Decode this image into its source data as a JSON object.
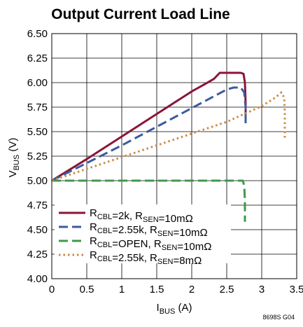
{
  "chart_data": {
    "type": "line",
    "title": "Output Current Load Line",
    "xlabel": {
      "main": "I",
      "sub": "BUS",
      "rest": " (A)"
    },
    "ylabel": {
      "main": "V",
      "sub": "BUS",
      "rest": " (V)"
    },
    "xlim": [
      0,
      3.5
    ],
    "ylim": [
      4.0,
      6.5
    ],
    "x_ticks": [
      0,
      0.5,
      1,
      1.5,
      2,
      2.5,
      3,
      3.5
    ],
    "x_tick_labels": [
      "0",
      "0.5",
      "1",
      "1.5",
      "2",
      "2.5",
      "3",
      "3.5"
    ],
    "y_ticks": [
      4.0,
      4.25,
      4.5,
      4.75,
      5.0,
      5.25,
      5.5,
      5.75,
      6.0,
      6.25,
      6.5
    ],
    "y_tick_labels": [
      "4.00",
      "4.25",
      "4.50",
      "4.75",
      "5.00",
      "5.25",
      "5.50",
      "5.75",
      "6.00",
      "6.25",
      "6.50"
    ],
    "grid": true,
    "legend_position": "bottom-left",
    "series": [
      {
        "legend": [
          {
            "t": "R",
            "s": false
          },
          {
            "t": "CBL",
            "s": true
          },
          {
            "t": "=2k, R",
            "s": false
          },
          {
            "t": "SEN",
            "s": true
          },
          {
            "t": "=10mΩ",
            "s": false
          }
        ],
        "color": "#8b1538",
        "dash": "solid",
        "x": [
          0,
          0.5,
          1.0,
          1.5,
          2.0,
          2.2,
          2.32,
          2.4,
          2.48,
          2.7,
          2.74,
          2.76,
          2.77,
          2.77
        ],
        "y": [
          5.0,
          5.22,
          5.45,
          5.68,
          5.91,
          5.99,
          6.04,
          6.1,
          6.1,
          6.1,
          6.09,
          6.0,
          5.8,
          5.6
        ]
      },
      {
        "legend": [
          {
            "t": "R",
            "s": false
          },
          {
            "t": "CBL",
            "s": true
          },
          {
            "t": "=2.55k, R",
            "s": false
          },
          {
            "t": "SEN",
            "s": true
          },
          {
            "t": "=10mΩ",
            "s": false
          }
        ],
        "color": "#3a5ba0",
        "dash": "long",
        "x": [
          0,
          0.5,
          1.0,
          1.5,
          2.0,
          2.5,
          2.6,
          2.7,
          2.75,
          2.77,
          2.77
        ],
        "y": [
          5.0,
          5.18,
          5.36,
          5.55,
          5.74,
          5.93,
          5.95,
          5.95,
          5.9,
          5.75,
          5.57
        ]
      },
      {
        "legend": [
          {
            "t": "R",
            "s": false
          },
          {
            "t": "CBL",
            "s": true
          },
          {
            "t": "=OPEN, R",
            "s": false
          },
          {
            "t": "SEN",
            "s": true
          },
          {
            "t": "=10mΩ",
            "s": false
          }
        ],
        "color": "#3e9a4a",
        "dash": "long",
        "x": [
          0,
          1.0,
          2.0,
          2.73,
          2.75,
          2.76,
          2.76
        ],
        "y": [
          5.0,
          5.0,
          5.0,
          5.0,
          4.95,
          4.8,
          4.58
        ]
      },
      {
        "legend": [
          {
            "t": "R",
            "s": false
          },
          {
            "t": "CBL",
            "s": true
          },
          {
            "t": "=2.55k, R",
            "s": false
          },
          {
            "t": "SEN",
            "s": true
          },
          {
            "t": "=8mΩ",
            "s": false
          }
        ],
        "color": "#c98b45",
        "dash": "dot",
        "x": [
          0,
          0.5,
          1.0,
          1.5,
          2.0,
          2.5,
          3.0,
          3.2,
          3.28,
          3.32,
          3.33,
          3.33
        ],
        "y": [
          5.0,
          5.12,
          5.24,
          5.36,
          5.48,
          5.6,
          5.76,
          5.85,
          5.9,
          5.85,
          5.7,
          5.43
        ]
      }
    ]
  },
  "figure_id": "8698S G04"
}
